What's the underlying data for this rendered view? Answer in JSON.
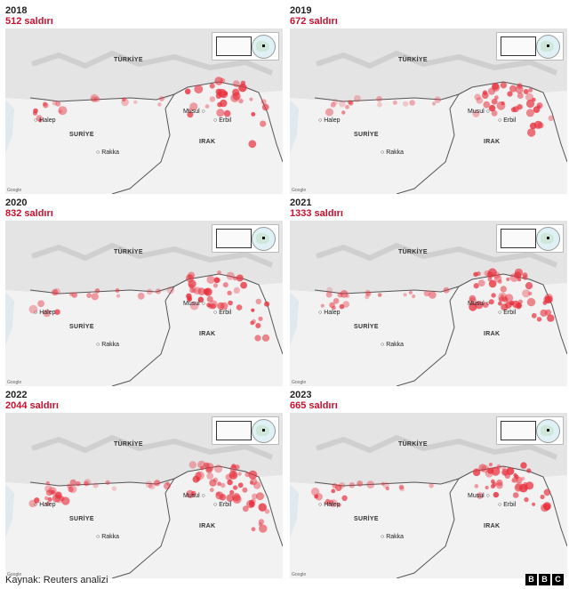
{
  "panels": [
    {
      "year": "2018",
      "count": "512 saldırı",
      "density": 0.55,
      "west_cluster": 0.6,
      "east_cluster": 0.6
    },
    {
      "year": "2019",
      "count": "672 saldırı",
      "density": 0.65,
      "west_cluster": 0.3,
      "east_cluster": 0.7
    },
    {
      "year": "2020",
      "count": "832 saldırı",
      "density": 0.7,
      "west_cluster": 0.3,
      "east_cluster": 0.85
    },
    {
      "year": "2021",
      "count": "1333 saldırı",
      "density": 0.85,
      "west_cluster": 0.45,
      "east_cluster": 1.0
    },
    {
      "year": "2022",
      "count": "2044 saldırı",
      "density": 1.0,
      "west_cluster": 0.9,
      "east_cluster": 1.0
    },
    {
      "year": "2023",
      "count": "665 saldırı",
      "density": 0.6,
      "west_cluster": 0.7,
      "east_cluster": 0.8
    }
  ],
  "labels": {
    "turkey": "TÜRKİYE",
    "syria": "SURİYE",
    "iraq": "IRAK",
    "aleppo": "Halep",
    "raqqa": "Rakka",
    "mosul": "Musul",
    "erbil": "Erbil",
    "map_credit": "Google"
  },
  "source": "Kaynak: Reuters analizi",
  "logo": [
    "B",
    "B",
    "C"
  ],
  "colors": {
    "attack": "#e8323f",
    "count_text": "#c8102e",
    "border": "#555555",
    "land": "#f2f2f2"
  }
}
